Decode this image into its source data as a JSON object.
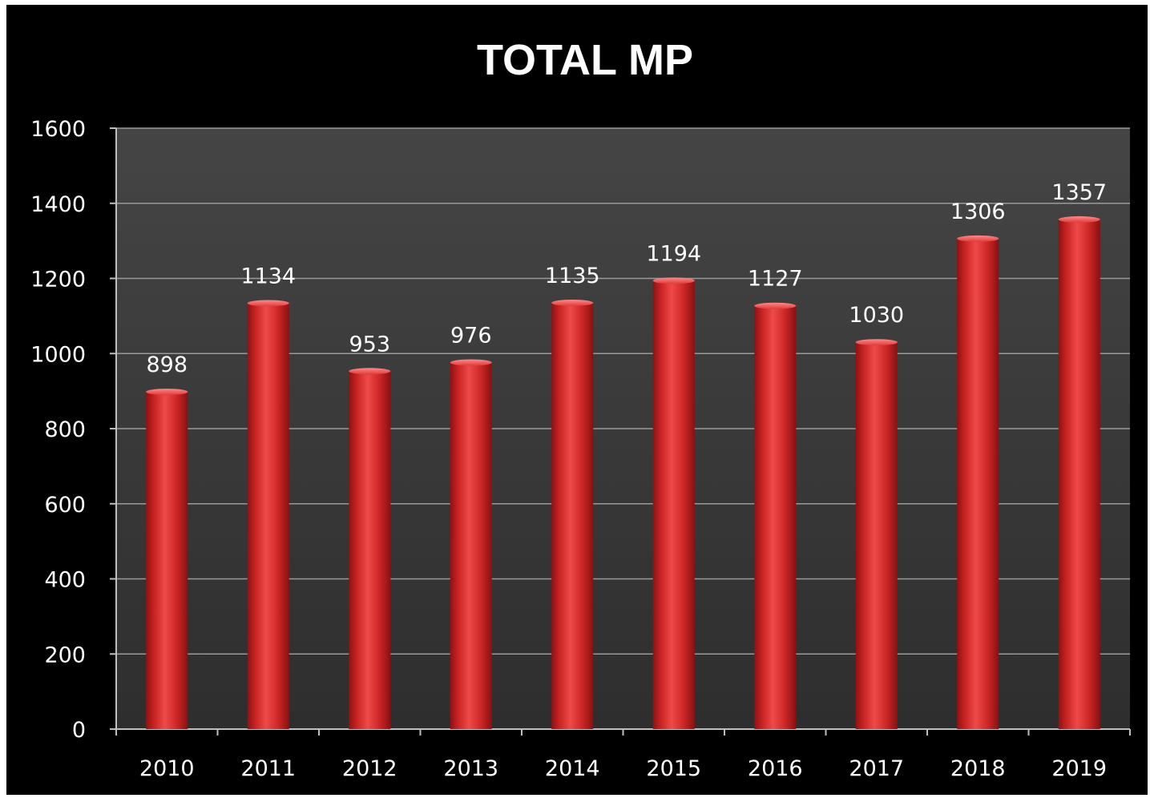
{
  "chart_data": {
    "type": "bar",
    "title": "TOTAL MP",
    "xlabel": "",
    "ylabel": "",
    "categories": [
      "2010",
      "2011",
      "2012",
      "2013",
      "2014",
      "2015",
      "2016",
      "2017",
      "2018",
      "2019"
    ],
    "values": [
      898,
      1134,
      953,
      976,
      1135,
      1194,
      1127,
      1030,
      1306,
      1357
    ],
    "data_labels": [
      "898",
      "1134",
      "953",
      "976",
      "1135",
      "1194",
      "1127",
      "1030",
      "1306",
      "1357"
    ],
    "ylim": [
      0,
      1600
    ],
    "yticks": [
      0,
      200,
      400,
      600,
      800,
      1000,
      1200,
      1400,
      1600
    ],
    "ytick_labels": [
      "0",
      "200",
      "400",
      "600",
      "800",
      "1000",
      "1200",
      "1400",
      "1600"
    ],
    "grid": true,
    "legend": "none",
    "colors": {
      "background": "#000000",
      "plot_area": "#3a3a3a",
      "bar": "#d42a2a",
      "gridline": "#9a9a9a",
      "text": "#ffffff"
    }
  }
}
